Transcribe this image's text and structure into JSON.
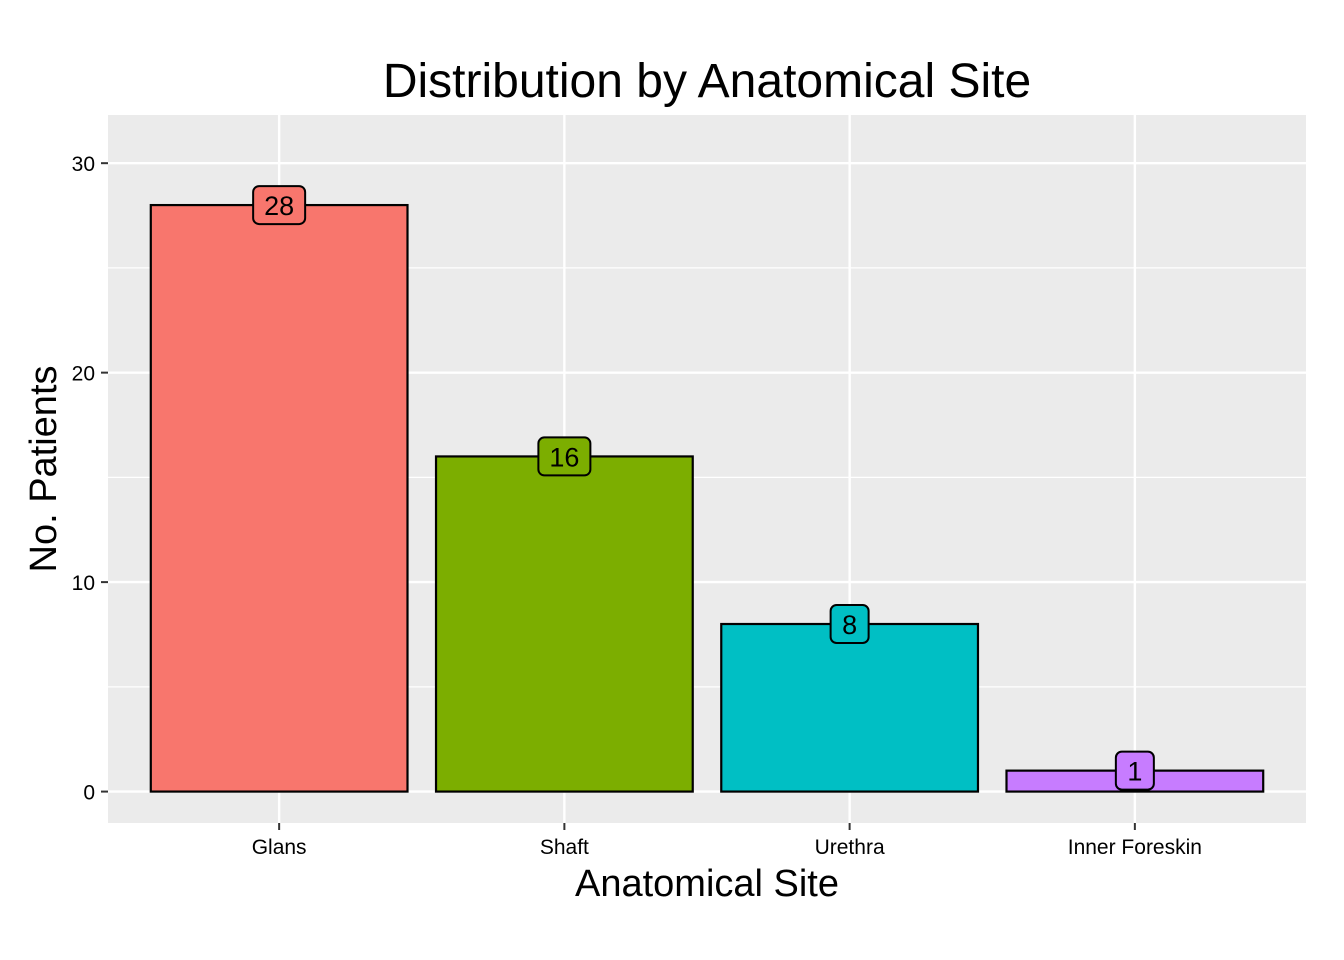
{
  "chart_data": {
    "type": "bar",
    "title": "Distribution by Anatomical Site",
    "xlabel": "Anatomical Site",
    "ylabel": "No. Patients",
    "categories": [
      "Glans",
      "Shaft",
      "Urethra",
      "Inner Foreskin"
    ],
    "values": [
      28,
      16,
      8,
      1
    ],
    "data_labels": [
      "28",
      "16",
      "8",
      "1"
    ],
    "colors": [
      "#F8766D",
      "#7CAE00",
      "#00BFC4",
      "#C77CFF"
    ],
    "ylim": [
      -1.5,
      32.3
    ],
    "yticks": [
      0,
      10,
      20,
      30
    ],
    "ytick_labels": [
      "0",
      "10",
      "20",
      "30"
    ],
    "grid": true,
    "legend": "none",
    "panel_background": "#EBEBEB",
    "gridline_color": "#FFFFFF"
  }
}
